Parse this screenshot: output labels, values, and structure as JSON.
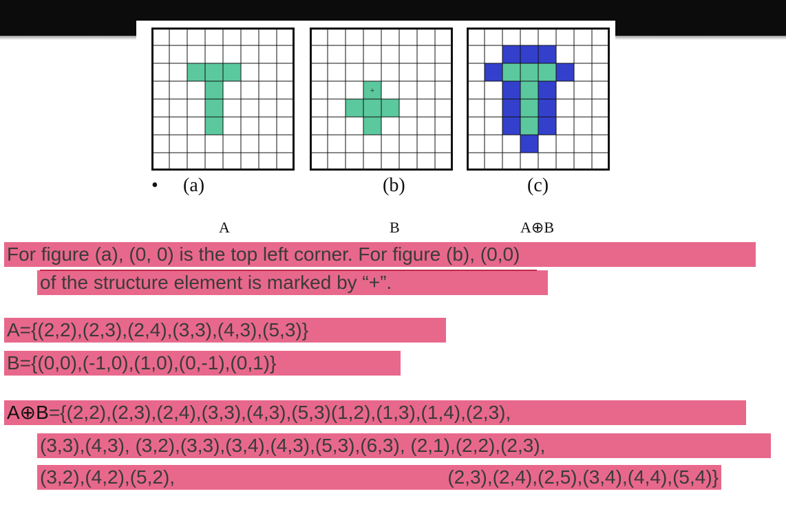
{
  "colors": {
    "structure_cell": "#5bc89e",
    "added_cell": "#3340cc",
    "highlight": "#e8688c",
    "title_bar": "#0c0c0c"
  },
  "figures": [
    {
      "panel_label": "(a)",
      "set_label": "A",
      "green_cells": [
        [
          2,
          2
        ],
        [
          2,
          3
        ],
        [
          2,
          4
        ],
        [
          3,
          3
        ],
        [
          4,
          3
        ],
        [
          5,
          3
        ]
      ],
      "blue_cells": []
    },
    {
      "panel_label": "(b)",
      "set_label": "B",
      "green_cells": [
        [
          3,
          3
        ],
        [
          4,
          2
        ],
        [
          4,
          3
        ],
        [
          4,
          4
        ],
        [
          5,
          3
        ]
      ],
      "blue_cells": [],
      "origin_marker": "+"
    },
    {
      "panel_label": "(c)",
      "set_label": "A⊕B",
      "green_cells": [
        [
          2,
          2
        ],
        [
          2,
          3
        ],
        [
          2,
          4
        ],
        [
          3,
          3
        ],
        [
          4,
          3
        ],
        [
          5,
          3
        ]
      ],
      "blue_cells": [
        [
          1,
          2
        ],
        [
          1,
          3
        ],
        [
          1,
          4
        ],
        [
          2,
          1
        ],
        [
          2,
          5
        ],
        [
          3,
          2
        ],
        [
          3,
          4
        ],
        [
          4,
          2
        ],
        [
          4,
          4
        ],
        [
          5,
          2
        ],
        [
          5,
          4
        ],
        [
          6,
          3
        ]
      ]
    }
  ],
  "bullet": "•",
  "text": {
    "line1": "For figure (a), (0, 0) is the top left corner. For figure (b), (0,0)",
    "line2": "of the structure element is marked by “+”.",
    "set_a": "A={(2,2),(2,3),(2,4),(3,3),(4,3),(5,3)}",
    "set_b": "B={(0,0),(-1,0),(1,0),(0,-1),(0,1)}",
    "dilation_symbol": "A⊕B",
    "dilation_line1": "={(2,2),(2,3),(2,4),(3,3),(4,3),(5,3)(1,2),(1,3),(1,4),(2,3),",
    "dilation_line2": "(3,3),(4,3), (3,2),(3,3),(3,4),(4,3),(5,3),(6,3), (2,1),(2,2),(2,3),",
    "dilation_line3a": "(3,2),(4,2),(5,2),",
    "dilation_line3b": "(2,3),(2,4),(2,5),(3,4),(4,4),(5,4)}"
  }
}
